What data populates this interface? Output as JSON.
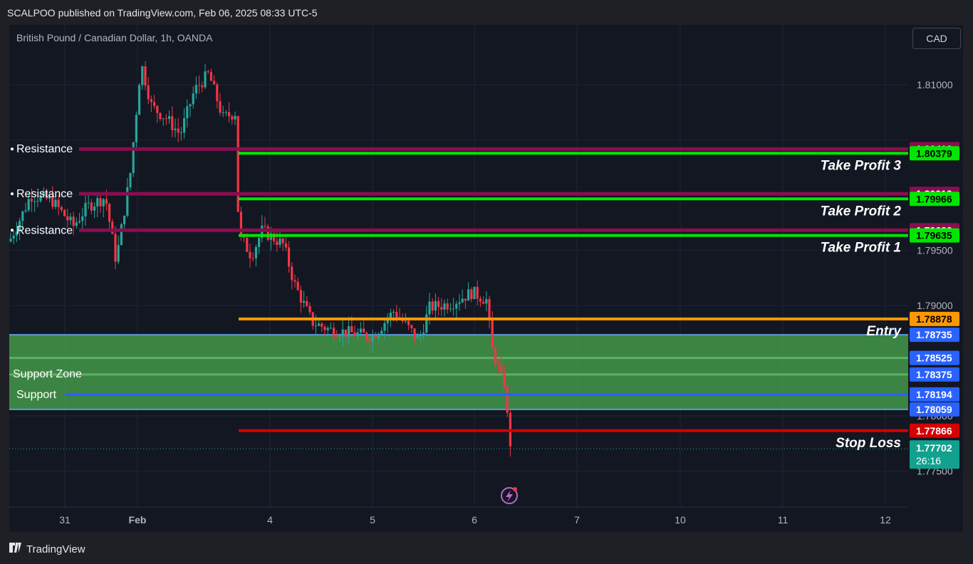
{
  "header": {
    "publish_line": "SCALPOO published on TradingView.com, Feb 06, 2025 08:33 UTC-5"
  },
  "symbol": {
    "title": "British Pound / Canadian Dollar, 1h, OANDA"
  },
  "currency_button": "CAD",
  "footer": {
    "logo_text": "TradingView"
  },
  "colors": {
    "background": "#131722",
    "up": "#26a69a",
    "down": "#f23645",
    "resistance": "#880e4f",
    "take_profit": "#00e600",
    "entry": "#ff9800",
    "stop_loss": "#d50000",
    "support": "#2962ff",
    "support_zone": "#4caf50"
  },
  "icons": [
    "tradingview-logo-icon",
    "lightning-news-icon"
  ],
  "chart_data": {
    "type": "candlestick",
    "title": "British Pound / Canadian Dollar, 1h, OANDA",
    "y_ticks": [
      1.81,
      1.795,
      1.79,
      1.78,
      1.775
    ],
    "x_ticks": [
      "31",
      "Feb",
      "4",
      "5",
      "6",
      "7",
      "10",
      "11",
      "12"
    ],
    "ylim": [
      1.772,
      1.812
    ],
    "grid": true,
    "levels": [
      {
        "name": "Resistance",
        "value": 1.80418,
        "kind": "resistance"
      },
      {
        "name": "Resistance",
        "value": 1.80012,
        "kind": "resistance"
      },
      {
        "name": "Resistance",
        "value": 1.79682,
        "kind": "resistance"
      },
      {
        "name": "Take Profit 3",
        "value": 1.80379,
        "kind": "take_profit"
      },
      {
        "name": "Take Profit 2",
        "value": 1.79966,
        "kind": "take_profit"
      },
      {
        "name": "Take Profit 1",
        "value": 1.79635,
        "kind": "take_profit"
      },
      {
        "name": "Entry",
        "value": 1.78878,
        "kind": "entry"
      },
      {
        "name": "Stop Loss",
        "value": 1.77866,
        "kind": "stop_loss"
      },
      {
        "name": "Support",
        "value": 1.78194,
        "kind": "support"
      }
    ],
    "support_zone": {
      "name": "Support Zone",
      "top": 1.78735,
      "bottom": 1.78059,
      "inner": [
        1.78525,
        1.78375
      ]
    },
    "price_labels": [
      {
        "value": "1.80418",
        "color": "#880e4f"
      },
      {
        "value": "1.80379",
        "color": "#00e600"
      },
      {
        "value": "1.80012",
        "color": "#880e4f"
      },
      {
        "value": "1.79966",
        "color": "#00e600"
      },
      {
        "value": "1.79682",
        "color": "#880e4f"
      },
      {
        "value": "1.79635",
        "color": "#00e600"
      },
      {
        "value": "1.78878",
        "color": "#ff9800"
      },
      {
        "value": "1.78735",
        "color": "#2962ff"
      },
      {
        "value": "1.78525",
        "color": "#2962ff"
      },
      {
        "value": "1.78375",
        "color": "#2962ff"
      },
      {
        "value": "1.78194",
        "color": "#2962ff"
      },
      {
        "value": "1.78059",
        "color": "#2962ff"
      },
      {
        "value": "1.77866",
        "color": "#d50000"
      }
    ],
    "last_price": {
      "value": "1.77702",
      "countdown": "26:16"
    }
  }
}
